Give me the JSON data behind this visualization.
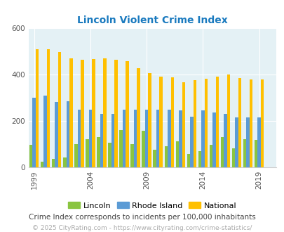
{
  "title": "Lincoln Violent Crime Index",
  "subtitle": "Crime Index corresponds to incidents per 100,000 inhabitants",
  "footer": "© 2025 CityRating.com - https://www.cityrating.com/crime-statistics/",
  "years": [
    1999,
    2000,
    2001,
    2002,
    2003,
    2004,
    2005,
    2006,
    2007,
    2008,
    2009,
    2010,
    2011,
    2012,
    2013,
    2014,
    2015,
    2016,
    2017,
    2018,
    2019
  ],
  "lincoln": [
    95,
    22,
    35,
    40,
    100,
    120,
    130,
    105,
    160,
    100,
    155,
    75,
    90,
    110,
    55,
    70,
    95,
    130,
    82,
    120,
    118
  ],
  "rhode_island": [
    298,
    308,
    282,
    283,
    248,
    248,
    228,
    228,
    248,
    248,
    248,
    248,
    248,
    243,
    218,
    243,
    235,
    228,
    215,
    215,
    215
  ],
  "national": [
    507,
    507,
    497,
    470,
    463,
    465,
    470,
    463,
    455,
    425,
    405,
    390,
    387,
    365,
    375,
    381,
    389,
    398,
    385,
    378,
    378
  ],
  "colors": {
    "lincoln": "#8ac540",
    "rhode_island": "#5b9bd5",
    "national": "#ffc000"
  },
  "bg_color": "#e4f1f5",
  "ylim": [
    0,
    600
  ],
  "yticks": [
    0,
    200,
    400,
    600
  ],
  "xticks": [
    1999,
    2004,
    2009,
    2014,
    2019
  ],
  "title_color": "#1a7abf",
  "subtitle_color": "#444444",
  "footer_color": "#aaaaaa",
  "bar_width": 0.28,
  "title_fontsize": 10,
  "subtitle_fontsize": 7.5,
  "footer_fontsize": 6.5
}
